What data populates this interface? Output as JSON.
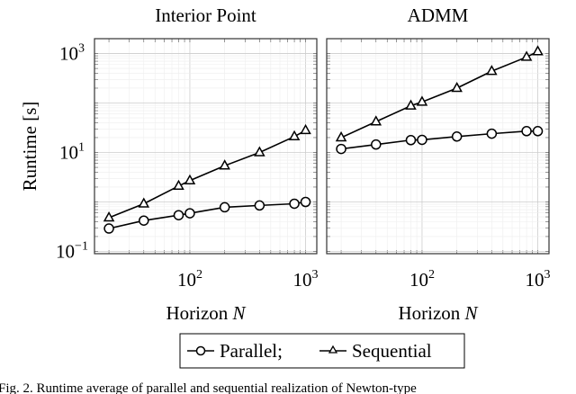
{
  "chart_data": [
    {
      "type": "line",
      "title": "Interior Point",
      "xlabel": "Horizon N",
      "ylabel": "Runtime [s]",
      "xscale": "log",
      "yscale": "log",
      "grid": true,
      "xlim": [
        15,
        1250
      ],
      "ylim": [
        0.09,
        2000
      ],
      "xticks": [
        {
          "v": 100,
          "base": "10",
          "exp": "2"
        },
        {
          "v": 1000,
          "base": "10",
          "exp": "3"
        }
      ],
      "yticks": [
        {
          "v": 0.1,
          "base": "10",
          "exp": "−1"
        },
        {
          "v": 10,
          "base": "10",
          "exp": "1"
        },
        {
          "v": 1000,
          "base": "10",
          "exp": "3"
        }
      ],
      "x": [
        20,
        40,
        80,
        100,
        200,
        400,
        800,
        1000
      ],
      "series": [
        {
          "name": "Parallel",
          "marker": "circle",
          "values": [
            0.29,
            0.42,
            0.54,
            0.59,
            0.78,
            0.85,
            0.92,
            1.0
          ]
        },
        {
          "name": "Sequential",
          "marker": "triangle",
          "values": [
            0.48,
            0.92,
            2.1,
            2.7,
            5.4,
            10,
            21,
            28
          ]
        }
      ]
    },
    {
      "type": "line",
      "title": "ADMM",
      "xlabel": "Horizon N",
      "xscale": "log",
      "yscale": "log",
      "grid": true,
      "xlim": [
        15,
        1250
      ],
      "ylim": [
        0.09,
        2000
      ],
      "xticks": [
        {
          "v": 100,
          "base": "10",
          "exp": "2"
        },
        {
          "v": 1000,
          "base": "10",
          "exp": "3"
        }
      ],
      "x": [
        20,
        40,
        80,
        100,
        200,
        400,
        800,
        1000
      ],
      "series": [
        {
          "name": "Parallel",
          "marker": "circle",
          "values": [
            11.8,
            14.5,
            17.8,
            18,
            21,
            24,
            27,
            27
          ]
        },
        {
          "name": "Sequential",
          "marker": "triangle",
          "values": [
            20,
            42,
            88,
            105,
            200,
            440,
            850,
            1100
          ]
        }
      ]
    }
  ],
  "legend": {
    "items": [
      "Parallel;",
      "Sequential"
    ],
    "placement": "bottom-center"
  },
  "caption": "Fig. 2.  Runtime average of parallel and sequential realization of Newton-type"
}
